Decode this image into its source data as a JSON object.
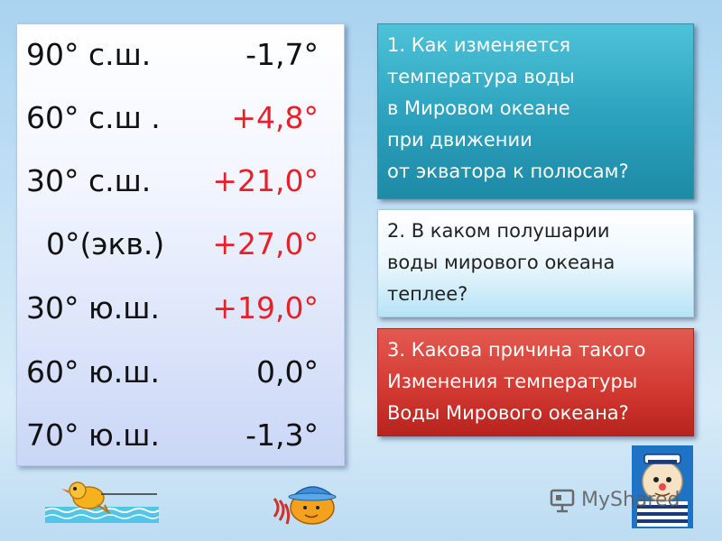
{
  "temperature_table": {
    "rows": [
      {
        "latitude": "90° с.ш.",
        "value": "-1,7°",
        "color": "#111111"
      },
      {
        "latitude": "60° с.ш .",
        "value": "+4,8°",
        "color": "#e8202a"
      },
      {
        "latitude": "30° с.ш.",
        "value": "+21,0°",
        "color": "#e8202a"
      },
      {
        "latitude": "0°(экв.)",
        "value": "+27,0°",
        "color": "#e8202a"
      },
      {
        "latitude": "30° ю.ш.",
        "value": "+19,0°",
        "color": "#e8202a"
      },
      {
        "latitude": "60° ю.ш.",
        "value": "0,0°",
        "color": "#111111"
      },
      {
        "latitude": "70° ю.ш.",
        "value": "-1,3°",
        "color": "#111111"
      }
    ]
  },
  "questions": {
    "q1": {
      "lines": [
        "1. Как  изменяется",
        "температура воды",
        "в Мировом океане",
        "при движении",
        "от экватора к полюсам?"
      ],
      "color": "#2aa1bd"
    },
    "q2": {
      "lines": [
        "2. В каком полушарии",
        "воды мирового океана",
        "теплее?"
      ],
      "color": "#ebf7fd"
    },
    "q3": {
      "lines": [
        "3. Какова причина такого",
        "Изменения температуры",
        "Воды Мирового океана?"
      ],
      "color": "#d33a32"
    }
  },
  "decorations": {
    "swimmer_icon": "swimmer-clipart-icon",
    "hat_icon": "hat-character-clipart-icon",
    "sailor_icon": "sailor-character-clipart-icon"
  },
  "watermark": {
    "text": "MyShared",
    "icon": "presentation-icon"
  }
}
